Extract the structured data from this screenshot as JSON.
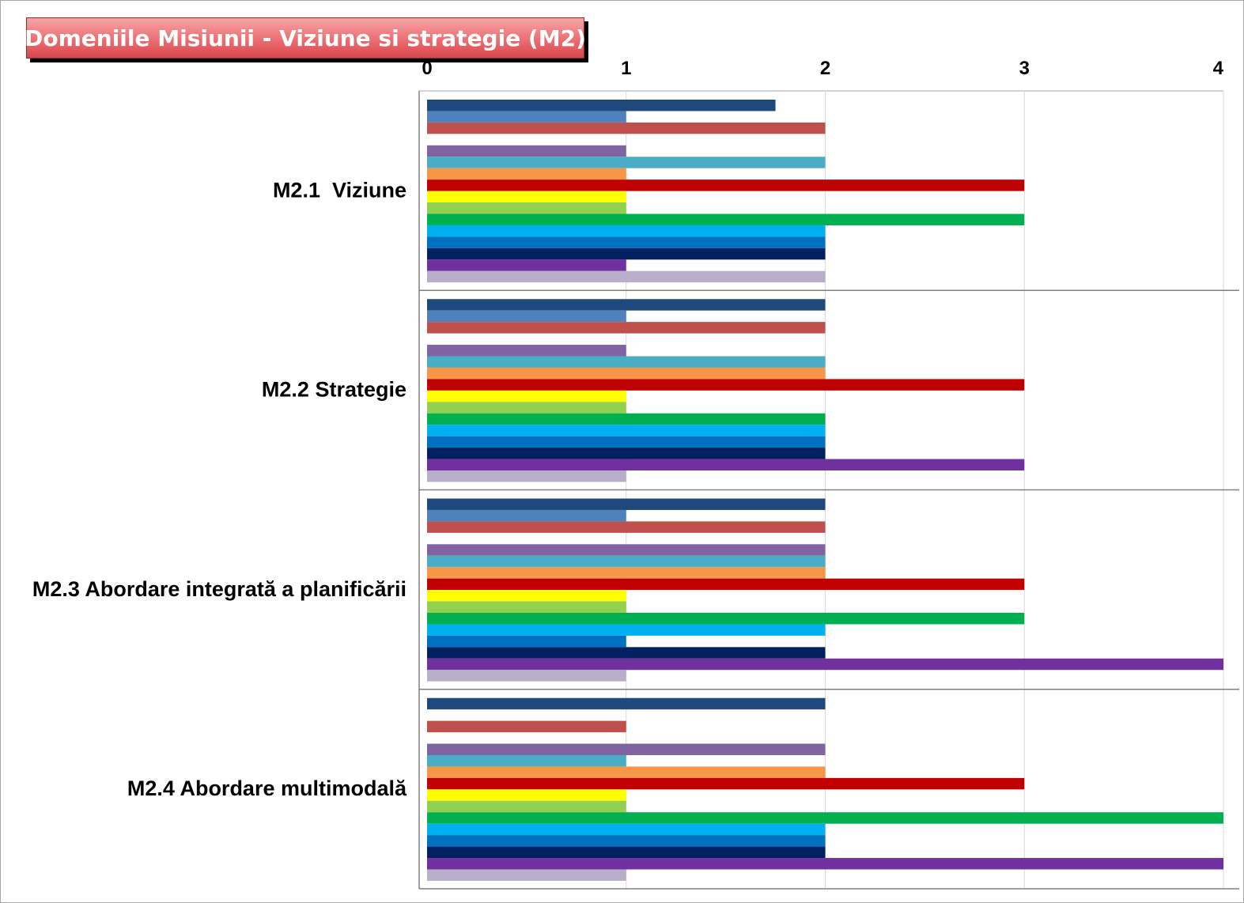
{
  "chart_data": {
    "type": "bar",
    "orientation": "horizontal",
    "title": "Domeniile Misiunii - Viziune si strategie (M2)",
    "xlim": [
      0,
      4
    ],
    "xticks": [
      "0",
      "1",
      "2",
      "3",
      "4"
    ],
    "x_axis_position": "top",
    "grid": true,
    "legend": "none",
    "categories": [
      "M2.1  Viziune",
      "M2.2 Strategie",
      "M2.3 Abordare integrată a planificării",
      "M2.4 Abordare multimodală"
    ],
    "series": [
      {
        "color": "#1f497d",
        "values": [
          1.75,
          2,
          2,
          2
        ]
      },
      {
        "color": "#4f81bd",
        "values": [
          1,
          1,
          1,
          0
        ]
      },
      {
        "color": "#c0504d",
        "values": [
          2,
          2,
          2,
          1
        ]
      },
      {
        "color": "#9bbb59",
        "values": [
          0,
          0,
          0,
          0
        ]
      },
      {
        "color": "#8064a2",
        "values": [
          1,
          1,
          2,
          2
        ]
      },
      {
        "color": "#4bacc6",
        "values": [
          2,
          2,
          2,
          1
        ]
      },
      {
        "color": "#f79646",
        "values": [
          1,
          2,
          2,
          2
        ]
      },
      {
        "color": "#c00000",
        "values": [
          3,
          3,
          3,
          3
        ]
      },
      {
        "color": "#ffff00",
        "values": [
          1,
          1,
          1,
          1
        ]
      },
      {
        "color": "#92d050",
        "values": [
          1,
          1,
          1,
          1
        ]
      },
      {
        "color": "#00b050",
        "values": [
          3,
          2,
          3,
          4
        ]
      },
      {
        "color": "#00b0f0",
        "values": [
          2,
          2,
          2,
          2
        ]
      },
      {
        "color": "#0070c0",
        "values": [
          2,
          2,
          1,
          2
        ]
      },
      {
        "color": "#002060",
        "values": [
          2,
          2,
          2,
          2
        ]
      },
      {
        "color": "#7030a0",
        "values": [
          1,
          3,
          4,
          4
        ]
      },
      {
        "color": "#b9aec9",
        "values": [
          2,
          1,
          1,
          1
        ]
      }
    ]
  }
}
